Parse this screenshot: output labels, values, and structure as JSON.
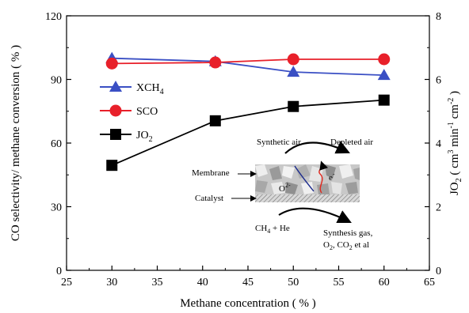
{
  "chart_data": {
    "type": "line",
    "x": [
      30,
      41.4,
      50,
      60
    ],
    "xlabel": "Methane concentration ( % )",
    "xlim": [
      25,
      65
    ],
    "xticks": [
      "25",
      "30",
      "35",
      "40",
      "45",
      "50",
      "55",
      "60",
      "65"
    ],
    "ylabel": "CO selectivity/ methane conversion ( % )",
    "ylim": [
      0,
      120
    ],
    "yticks": [
      "0",
      "30",
      "60",
      "90",
      "120"
    ],
    "y2label": "JO2 ( cm3 min-1 cm-2 )",
    "y2lim": [
      0,
      8
    ],
    "y2ticks": [
      "0",
      "2",
      "4",
      "6",
      "8"
    ],
    "grid": false,
    "legend_position": "upper-left",
    "series": [
      {
        "name": "XCH4",
        "axis": "left",
        "marker": "triangle",
        "color": "#3a4fc4",
        "values": [
          100,
          98.5,
          93.5,
          92
        ]
      },
      {
        "name": "SCO",
        "axis": "left",
        "marker": "circle",
        "color": "#e8202a",
        "values": [
          97.5,
          98,
          99.5,
          99.5
        ]
      },
      {
        "name": "JO2",
        "axis": "right",
        "marker": "square",
        "color": "#000000",
        "values": [
          3.3,
          4.7,
          5.15,
          5.35
        ]
      }
    ]
  },
  "legend": {
    "xch4_main": "XCH",
    "xch4_sub": "4",
    "sco": "SCO",
    "jo2_main": "JO",
    "jo2_sub": "2"
  },
  "axis_title_parts": {
    "right_jo": "JO",
    "right_sub": "2",
    "right_open": " ( cm",
    "right_exp3": "3",
    "right_min": " min",
    "right_exp1": "-1",
    "right_cm": " cm",
    "right_exp2": "-2",
    "right_close": " )"
  },
  "inset": {
    "synthetic_air": "Synthetic air",
    "depleted_air": "Depleted air",
    "membrane": "Membrane",
    "catalyst": "Catalyst",
    "o2_ion": "O",
    "o2_ion_charge": "2-",
    "electron": "e",
    "electron_charge": "-",
    "feed_main": "CH",
    "feed_sub": "4",
    "feed_rest": " + He",
    "products_line1": "Synthesis gas,",
    "products_line2_o": "O",
    "products_line2_o_sub": "2",
    "products_line2_c": ", CO",
    "products_line2_c_sub": "2",
    "products_line2_rest": " et al"
  }
}
